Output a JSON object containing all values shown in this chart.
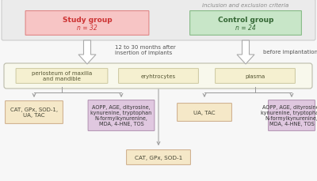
{
  "bg_color": "#f7f7f7",
  "outer_box_color": "#ebebeb",
  "outer_box_edge": "#cccccc",
  "outer_box_title": "inclusion and exclusion criteria",
  "study_group_color": "#f7c5c5",
  "study_group_edge": "#e08888",
  "study_group_text1": "Study group",
  "study_group_text2": "n = 32",
  "control_group_color": "#c8e6c8",
  "control_group_edge": "#88bb88",
  "control_group_text1": "Control group",
  "control_group_text2": "n = 24",
  "arrow1_label": "12 to 30 months after\ninsertion of implants",
  "arrow2_label": "before implantation",
  "arrow_face": "#ffffff",
  "arrow_edge": "#aaaaaa",
  "tissue_bg_color": "#f8f8ec",
  "tissue_bg_edge": "#bbbbaa",
  "tissue_box_color": "#f5f0d0",
  "tissue_box_edge": "#ccc8a0",
  "tissue_labels": [
    "periosteum of maxilla\nand mandible",
    "eryhtrocytes",
    "plasma"
  ],
  "box1_color": "#f5e8c8",
  "box1_edge": "#ccaa88",
  "box1_text": "CAT, GPx, SOD-1,\nUA, TAC",
  "box2_color": "#e0c8e0",
  "box2_edge": "#b090b0",
  "box2_text": "AOPP, AGE, dityrosine,\nkynurenine, tryptophan\nN-formylkynurenine,\nMDA, 4-HNE, TOS",
  "box3_color": "#f5e8c8",
  "box3_edge": "#ccaa88",
  "box3_text": "UA, TAC",
  "box4_color": "#e0c8e0",
  "box4_edge": "#b090b0",
  "box4_text": "AOPP, AGE, dityrosine,\nkynurenine, tryptophan\nN-formylkynurenine,\nMDA, 4-HNE, TOS",
  "box5_color": "#f5e8c8",
  "box5_edge": "#ccaa88",
  "box5_text": "CAT, GPx, SOD-1",
  "line_color": "#999999",
  "text_dark": "#444444",
  "text_medium": "#666666",
  "text_study": "#cc3333",
  "text_control": "#336633"
}
